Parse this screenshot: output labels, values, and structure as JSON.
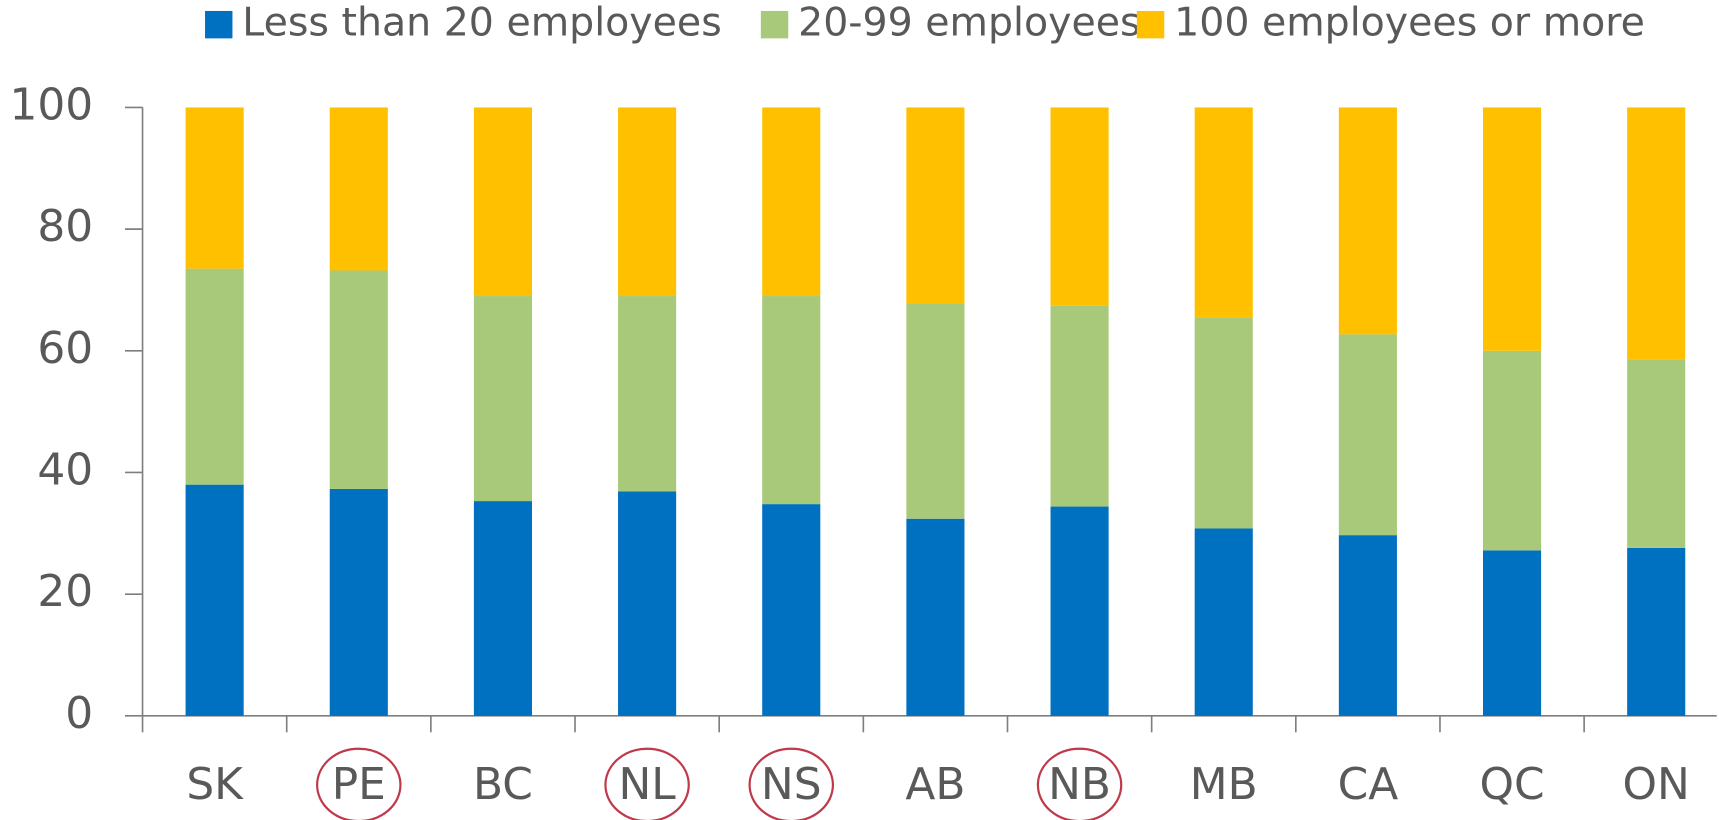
{
  "chart_data": {
    "type": "stacked_bar",
    "categories": [
      "SK",
      "PE",
      "BC",
      "NL",
      "NS",
      "AB",
      "NB",
      "MB",
      "CA",
      "QC",
      "ON"
    ],
    "series": [
      {
        "name": "Less than 20 employees",
        "color": "#0070c0",
        "values": [
          38.0,
          37.3,
          35.3,
          36.9,
          34.8,
          32.4,
          34.4,
          30.8,
          29.7,
          27.2,
          27.6
        ]
      },
      {
        "name": "20-99 employees",
        "color": "#a9c97a",
        "values": [
          35.5,
          35.9,
          33.7,
          32.1,
          34.2,
          35.3,
          33.0,
          34.6,
          33.0,
          32.8,
          31.0
        ]
      },
      {
        "name": "100 employees or more",
        "color": "#ffc000",
        "values": [
          26.5,
          26.8,
          31.0,
          31.0,
          31.0,
          32.3,
          32.6,
          34.6,
          37.3,
          40.0,
          41.4
        ]
      }
    ],
    "ylim": [
      0,
      100
    ],
    "yticks": [
      0,
      20,
      40,
      60,
      80,
      100
    ],
    "legend": "top",
    "circled_categories": [
      1,
      3,
      4,
      6
    ],
    "circle_color": "#c0394b"
  }
}
